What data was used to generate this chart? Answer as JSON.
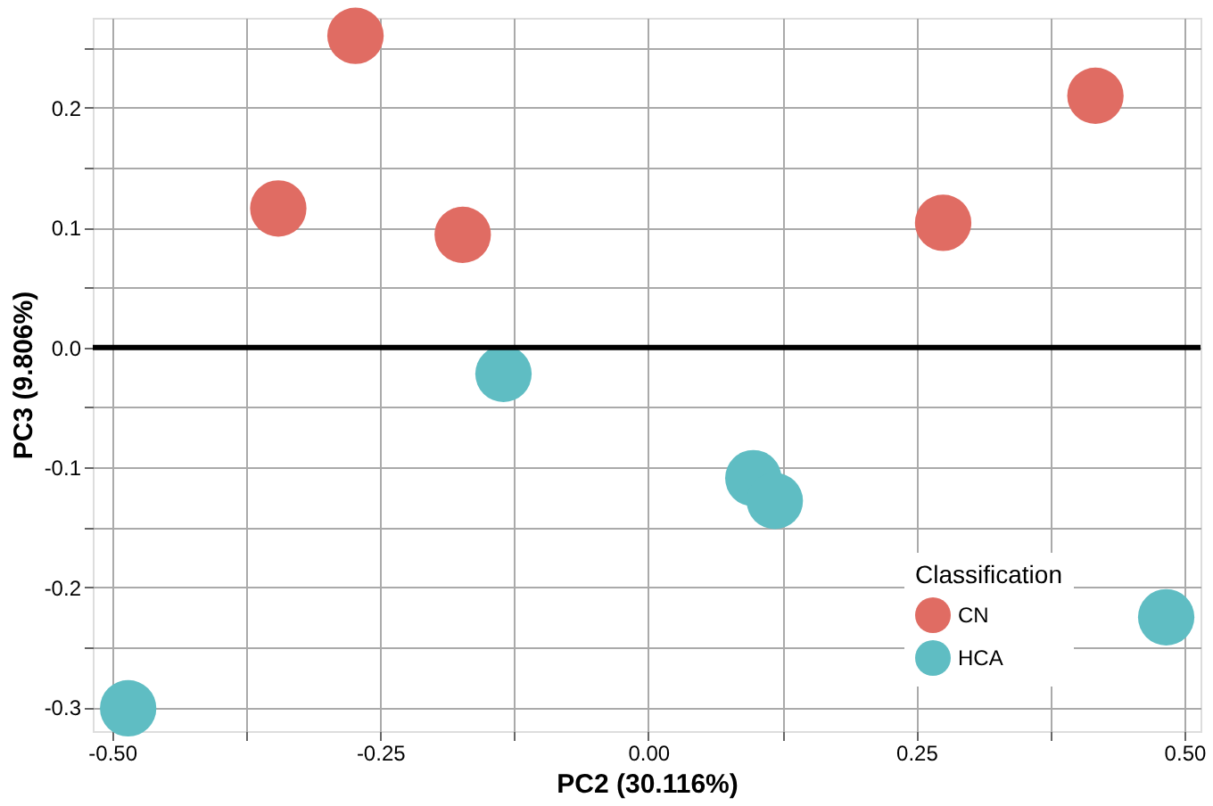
{
  "chart_data": {
    "type": "scatter",
    "xlabel": "PC2 (30.116%)",
    "ylabel": "PC3 (9.806%)",
    "legend_title": "Classification",
    "legend": "bottom right",
    "grid": true,
    "marker": "circle",
    "xlim": [
      -0.518,
      0.515
    ],
    "ylim": [
      -0.32,
      0.275
    ],
    "xticks": [
      {
        "value": -0.5,
        "label": "-0.50"
      },
      {
        "value": -0.375,
        "label": null
      },
      {
        "value": -0.25,
        "label": "-0.25"
      },
      {
        "value": -0.125,
        "label": null
      },
      {
        "value": 0,
        "label": "0.00"
      },
      {
        "value": 0.125,
        "label": null
      },
      {
        "value": 0.25,
        "label": "0.25"
      },
      {
        "value": 0.375,
        "label": null
      },
      {
        "value": 0.5,
        "label": "0.50"
      }
    ],
    "yticks": [
      {
        "value": -0.3,
        "label": "-0.3"
      },
      {
        "value": -0.25,
        "label": null
      },
      {
        "value": -0.2,
        "label": "-0.2"
      },
      {
        "value": -0.15,
        "label": null
      },
      {
        "value": -0.1,
        "label": "-0.1"
      },
      {
        "value": -0.05,
        "label": null
      },
      {
        "value": 0,
        "label": "0.0"
      },
      {
        "value": 0.05,
        "label": null
      },
      {
        "value": 0.1,
        "label": "0.1"
      },
      {
        "value": 0.15,
        "label": null
      },
      {
        "value": 0.2,
        "label": "0.2"
      },
      {
        "value": 0.25,
        "label": null
      }
    ],
    "ref_lines": [
      {
        "axis": "y",
        "value": 0,
        "label": null,
        "color": "#000000"
      }
    ],
    "series": [
      {
        "name": "CN",
        "color": "#e06c63",
        "x": [
          -0.273,
          -0.345,
          -0.173,
          0.275,
          0.417
        ],
        "values": [
          0.26,
          0.116,
          0.094,
          0.104,
          0.21
        ]
      },
      {
        "name": "HCA",
        "color": "#5fbdc3",
        "x": [
          -0.135,
          0.098,
          0.118,
          0.483,
          -0.485
        ],
        "values": [
          -0.022,
          -0.109,
          -0.128,
          -0.225,
          -0.301
        ]
      }
    ]
  }
}
